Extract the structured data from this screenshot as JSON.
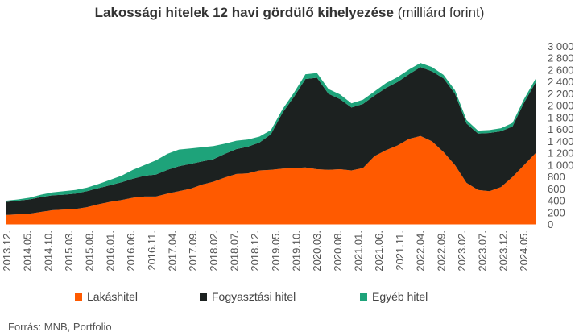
{
  "chart_data": {
    "type": "area",
    "stacked": true,
    "title": "Lakossági hitelek 12 havi gördülő kihelyezése",
    "title_unit": "(milliárd forint)",
    "xlabel": "",
    "ylabel": "",
    "ylim": [
      0,
      3000
    ],
    "y_ticks": [
      0,
      200,
      400,
      600,
      800,
      1000,
      1200,
      1400,
      1600,
      1800,
      2000,
      2200,
      2400,
      2600,
      2800,
      3000
    ],
    "y_tick_labels": [
      "0",
      "200",
      "400",
      "600",
      "800",
      "1 000",
      "1 200",
      "1 400",
      "1 600",
      "1 800",
      "2 000",
      "2 200",
      "2 400",
      "2 600",
      "2 800",
      "3 000"
    ],
    "x_tick_labels": [
      "2013.12.",
      "2014.05.",
      "2014.10.",
      "2015.03.",
      "2015.08.",
      "2016.01.",
      "2016.06.",
      "2016.11.",
      "2017.04.",
      "2017.09.",
      "2018.02.",
      "2018.07.",
      "2018.12.",
      "2019.05.",
      "2019.10.",
      "2020.03.",
      "2020.08.",
      "2021.01.",
      "2021.06.",
      "2021.11.",
      "2022.04.",
      "2022.09.",
      "2023.02.",
      "2023.07.",
      "2023.12.",
      "2024.05."
    ],
    "legend_position": "bottom",
    "grid": false,
    "series": [
      {
        "name": "Lakáshitel",
        "color": "#ff5a00",
        "values": [
          160,
          170,
          180,
          210,
          240,
          250,
          260,
          290,
          340,
          380,
          410,
          450,
          470,
          470,
          520,
          560,
          600,
          670,
          720,
          790,
          850,
          860,
          910,
          920,
          940,
          950,
          960,
          930,
          920,
          930,
          910,
          950,
          1150,
          1250,
          1330,
          1440,
          1490,
          1400,
          1220,
          1000,
          700,
          580,
          560,
          630,
          800,
          1000,
          1200
        ]
      },
      {
        "name": "Fogyasztási hitel",
        "color": "#1c2120",
        "values": [
          220,
          230,
          240,
          250,
          250,
          250,
          260,
          270,
          270,
          280,
          300,
          320,
          350,
          370,
          400,
          420,
          420,
          390,
          380,
          400,
          420,
          450,
          470,
          600,
          940,
          1200,
          1490,
          1540,
          1280,
          1180,
          1060,
          1080,
          1020,
          1050,
          1070,
          1090,
          1160,
          1180,
          1240,
          1200,
          1000,
          950,
          980,
          940,
          850,
          1050,
          1190
        ]
      },
      {
        "name": "Egyéb hitel",
        "color": "#1ea37a",
        "values": [
          20,
          20,
          30,
          40,
          50,
          60,
          60,
          60,
          70,
          90,
          110,
          150,
          180,
          240,
          270,
          280,
          260,
          240,
          220,
          170,
          140,
          120,
          100,
          70,
          60,
          70,
          80,
          80,
          80,
          80,
          70,
          70,
          70,
          80,
          80,
          80,
          70,
          70,
          60,
          60,
          60,
          50,
          50,
          50,
          60,
          60,
          60
        ]
      }
    ]
  },
  "source": "Forrás: MNB, Portfolio"
}
